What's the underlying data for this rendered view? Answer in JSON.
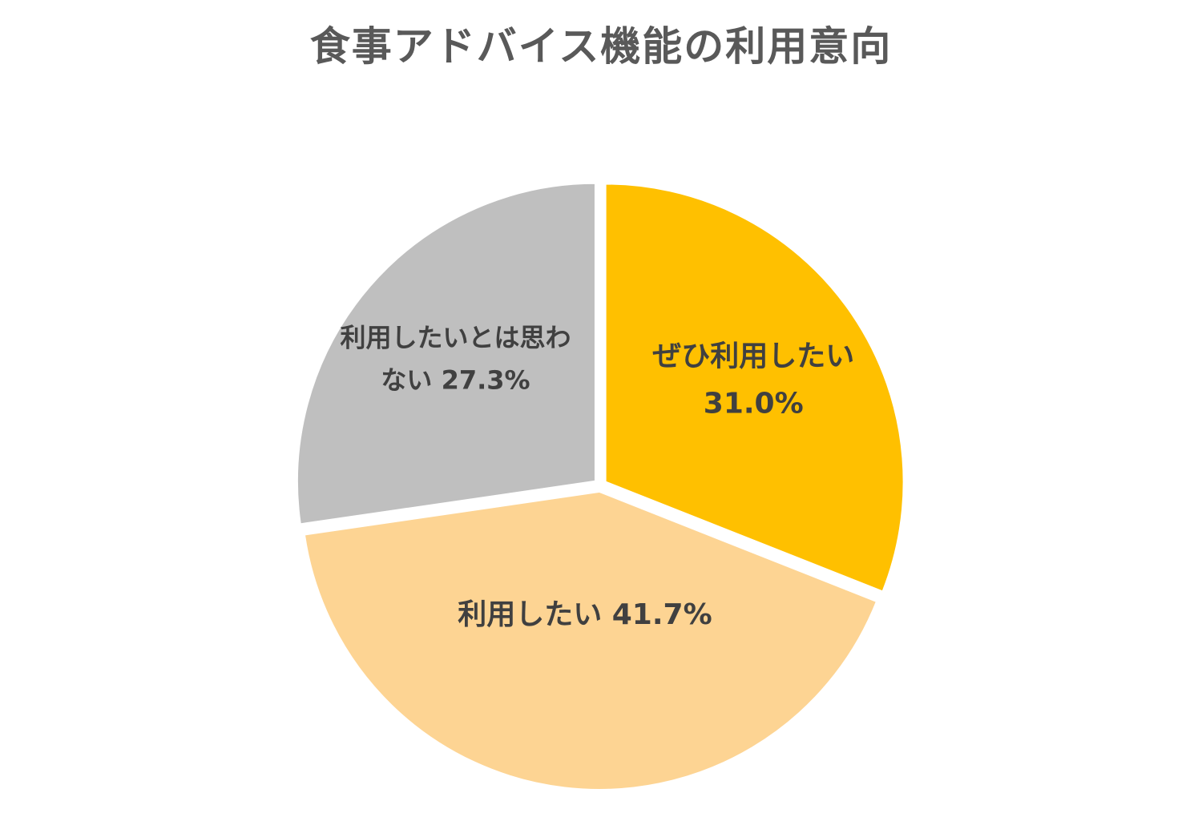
{
  "chart_data": {
    "type": "pie",
    "title": "食事アドバイス機能の利用意向",
    "slices": [
      {
        "category": "ぜひ利用したい",
        "value": 31.0,
        "value_label": "31.0%",
        "color": "#FFC000",
        "label_lines": [
          "ぜひ利用したい",
          "31.0%"
        ]
      },
      {
        "category": "利用したい",
        "value": 41.7,
        "value_label": "41.7%",
        "color": "#FDD493",
        "label_lines": [
          "利用したい 41.7%"
        ]
      },
      {
        "category": "利用したいとは思わない",
        "value": 27.3,
        "value_label": "27.3%",
        "color": "#BFBFBF",
        "label_lines": [
          "利用したいとは思わ",
          "ない 27.3%"
        ]
      }
    ],
    "start": "12 o'clock",
    "direction": "clockwise",
    "legend": "none",
    "labels": "inside",
    "exploded": true
  }
}
